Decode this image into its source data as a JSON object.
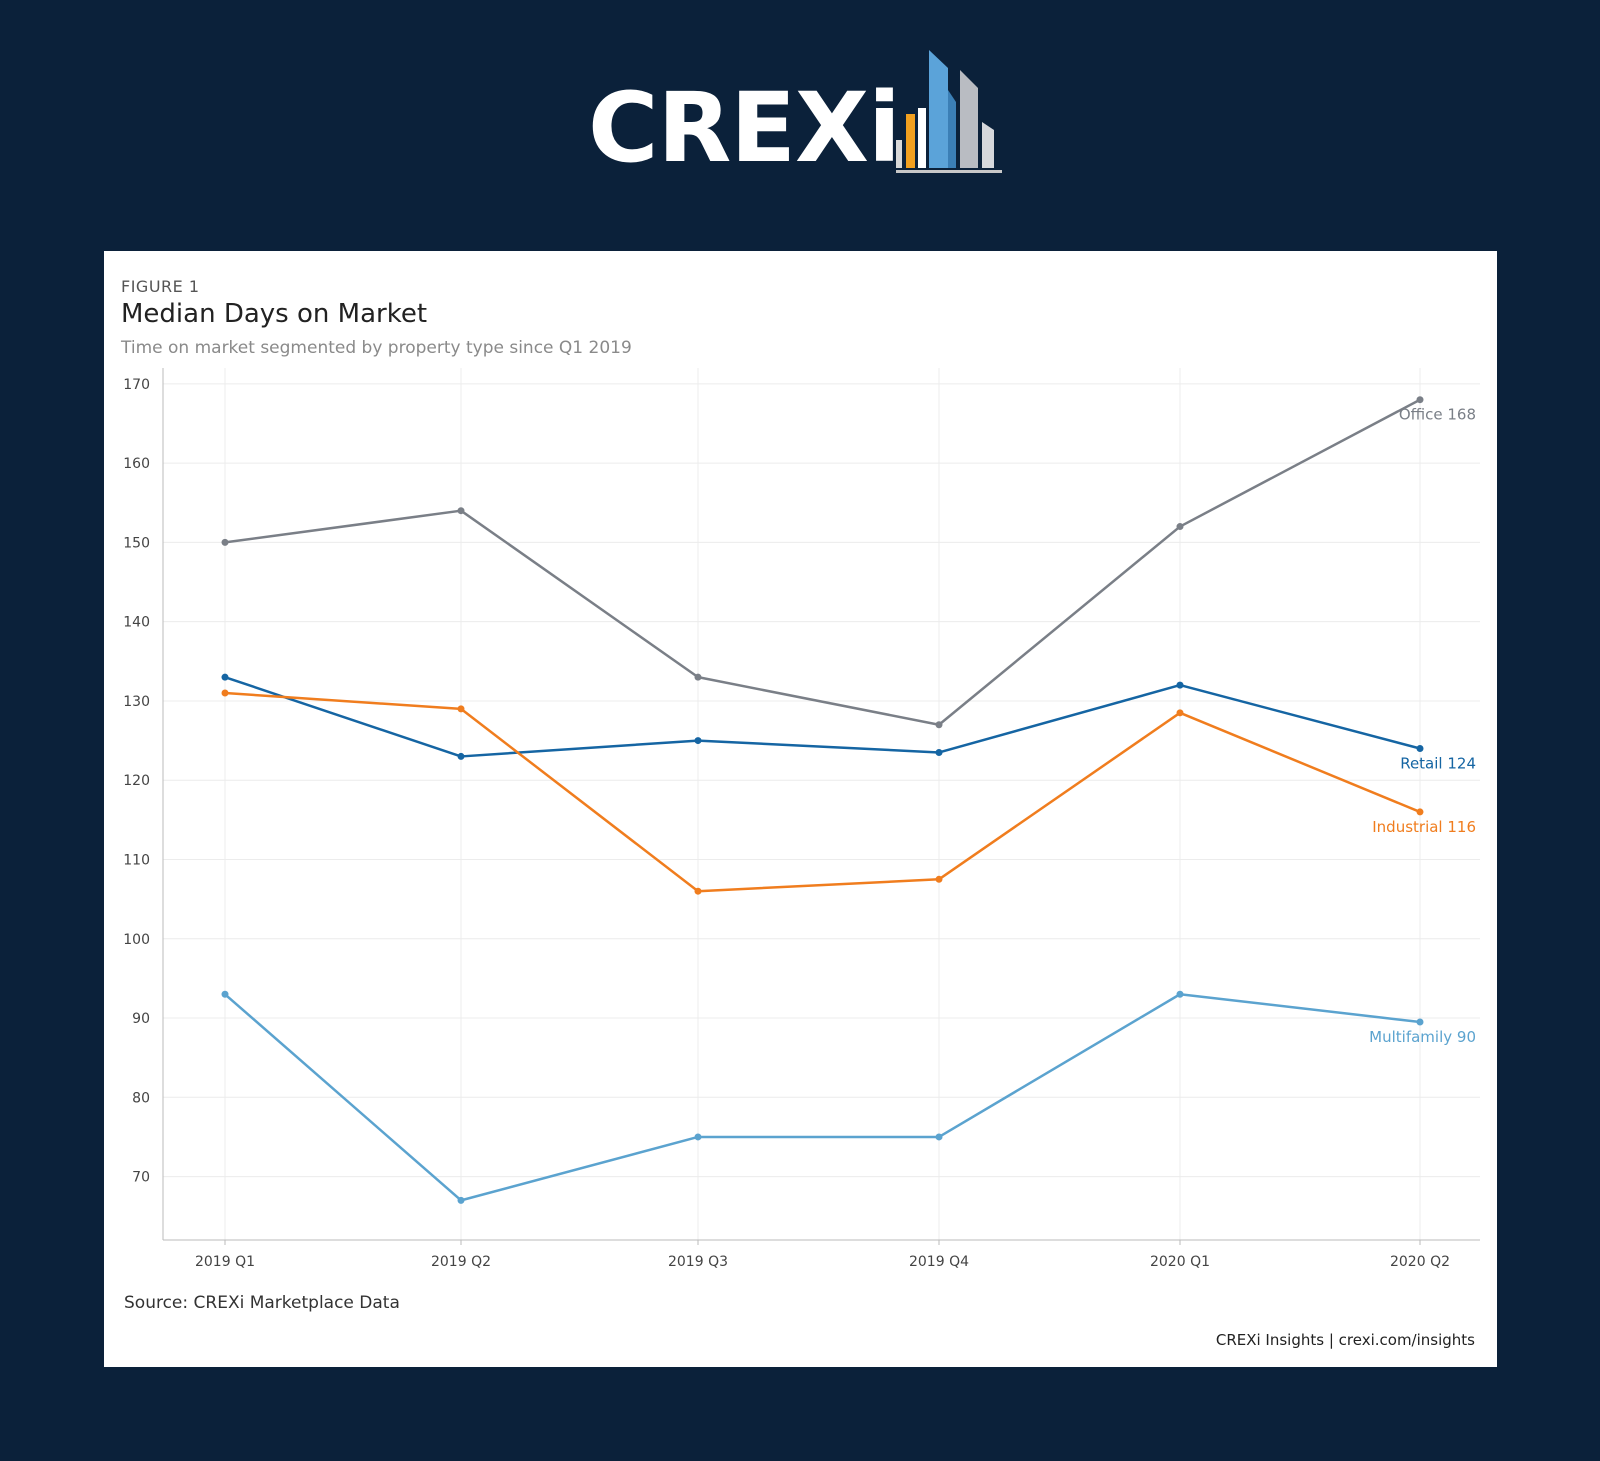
{
  "brand": {
    "logo_text": "CREXi"
  },
  "figure": {
    "label": "FIGURE 1",
    "title": "Median Days on Market",
    "subtitle": "Time on market segmented by property type since Q1 2019",
    "source": "Source: CREXi Marketplace Data",
    "credit": "CREXi Insights | crexi.com/insights"
  },
  "chart_data": {
    "type": "line",
    "title": "Median Days on Market",
    "subtitle": "Time on market segmented by property type since Q1 2019",
    "xlabel": "",
    "ylabel": "",
    "categories": [
      "2019 Q1",
      "2019 Q2",
      "2019 Q3",
      "2019 Q4",
      "2020 Q1",
      "2020 Q2"
    ],
    "ylim": [
      62,
      172
    ],
    "yticks": [
      70,
      80,
      90,
      100,
      110,
      120,
      130,
      140,
      150,
      160,
      170
    ],
    "grid": true,
    "legend": "end-of-line labels",
    "series": [
      {
        "name": "Office",
        "end_label": "Office 168",
        "color": "#7a7f87",
        "values": [
          150,
          154,
          133,
          127,
          152,
          168
        ]
      },
      {
        "name": "Retail",
        "end_label": "Retail 124",
        "color": "#1565a3",
        "values": [
          133,
          123,
          125,
          123.5,
          132,
          124
        ]
      },
      {
        "name": "Industrial",
        "end_label": "Industrial 116",
        "color": "#f07d1e",
        "values": [
          131,
          129,
          106,
          107.5,
          128.5,
          116
        ]
      },
      {
        "name": "Multifamily",
        "end_label": "Multifamily 90",
        "color": "#5ba3cf",
        "values": [
          93,
          67,
          75,
          75,
          93,
          89.5
        ]
      }
    ]
  }
}
